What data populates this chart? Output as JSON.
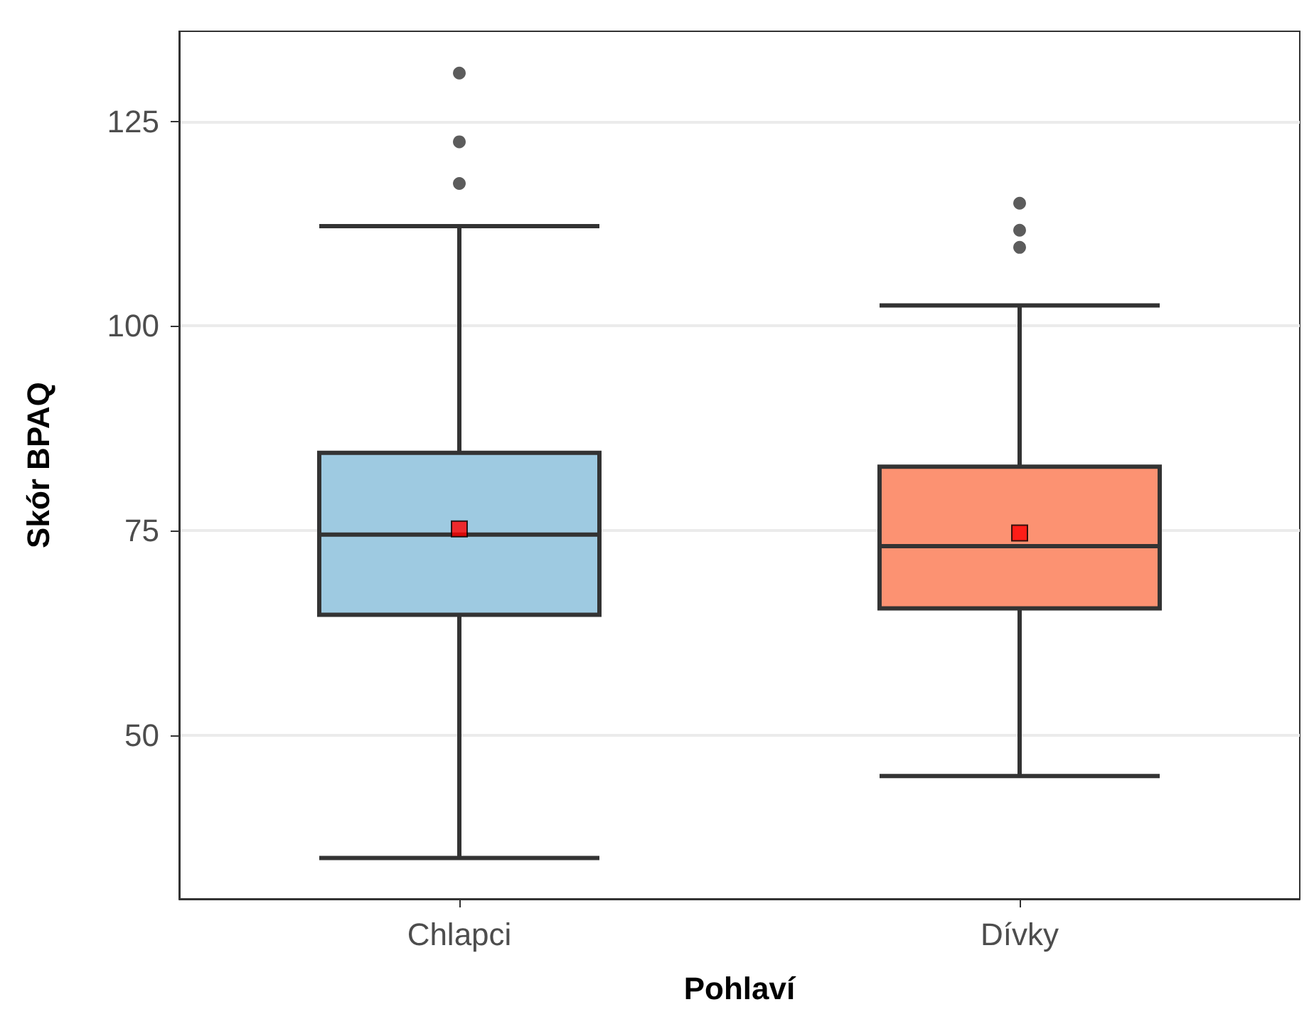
{
  "chart_data": {
    "type": "box",
    "xlabel": "Pohlaví",
    "ylabel": "Skór BPAQ",
    "categories": [
      "Chlapci",
      "Dívky"
    ],
    "colors": [
      "#9ecae1",
      "#fc9272"
    ],
    "boxes": [
      {
        "low": 35,
        "q1": 64.7,
        "median": 74.5,
        "q3": 84.5,
        "high": 112.2,
        "mean": 75.2,
        "outliers": [
          117.4,
          122.5,
          130.9
        ]
      },
      {
        "low": 45,
        "q1": 65.5,
        "median": 73.1,
        "q3": 82.8,
        "high": 102.5,
        "mean": 74.7,
        "outliers": [
          109.6,
          111.7,
          115
        ]
      }
    ],
    "ylim": [
      30,
      136
    ],
    "yticks": [
      50,
      75,
      100,
      125
    ],
    "grid": "y"
  }
}
